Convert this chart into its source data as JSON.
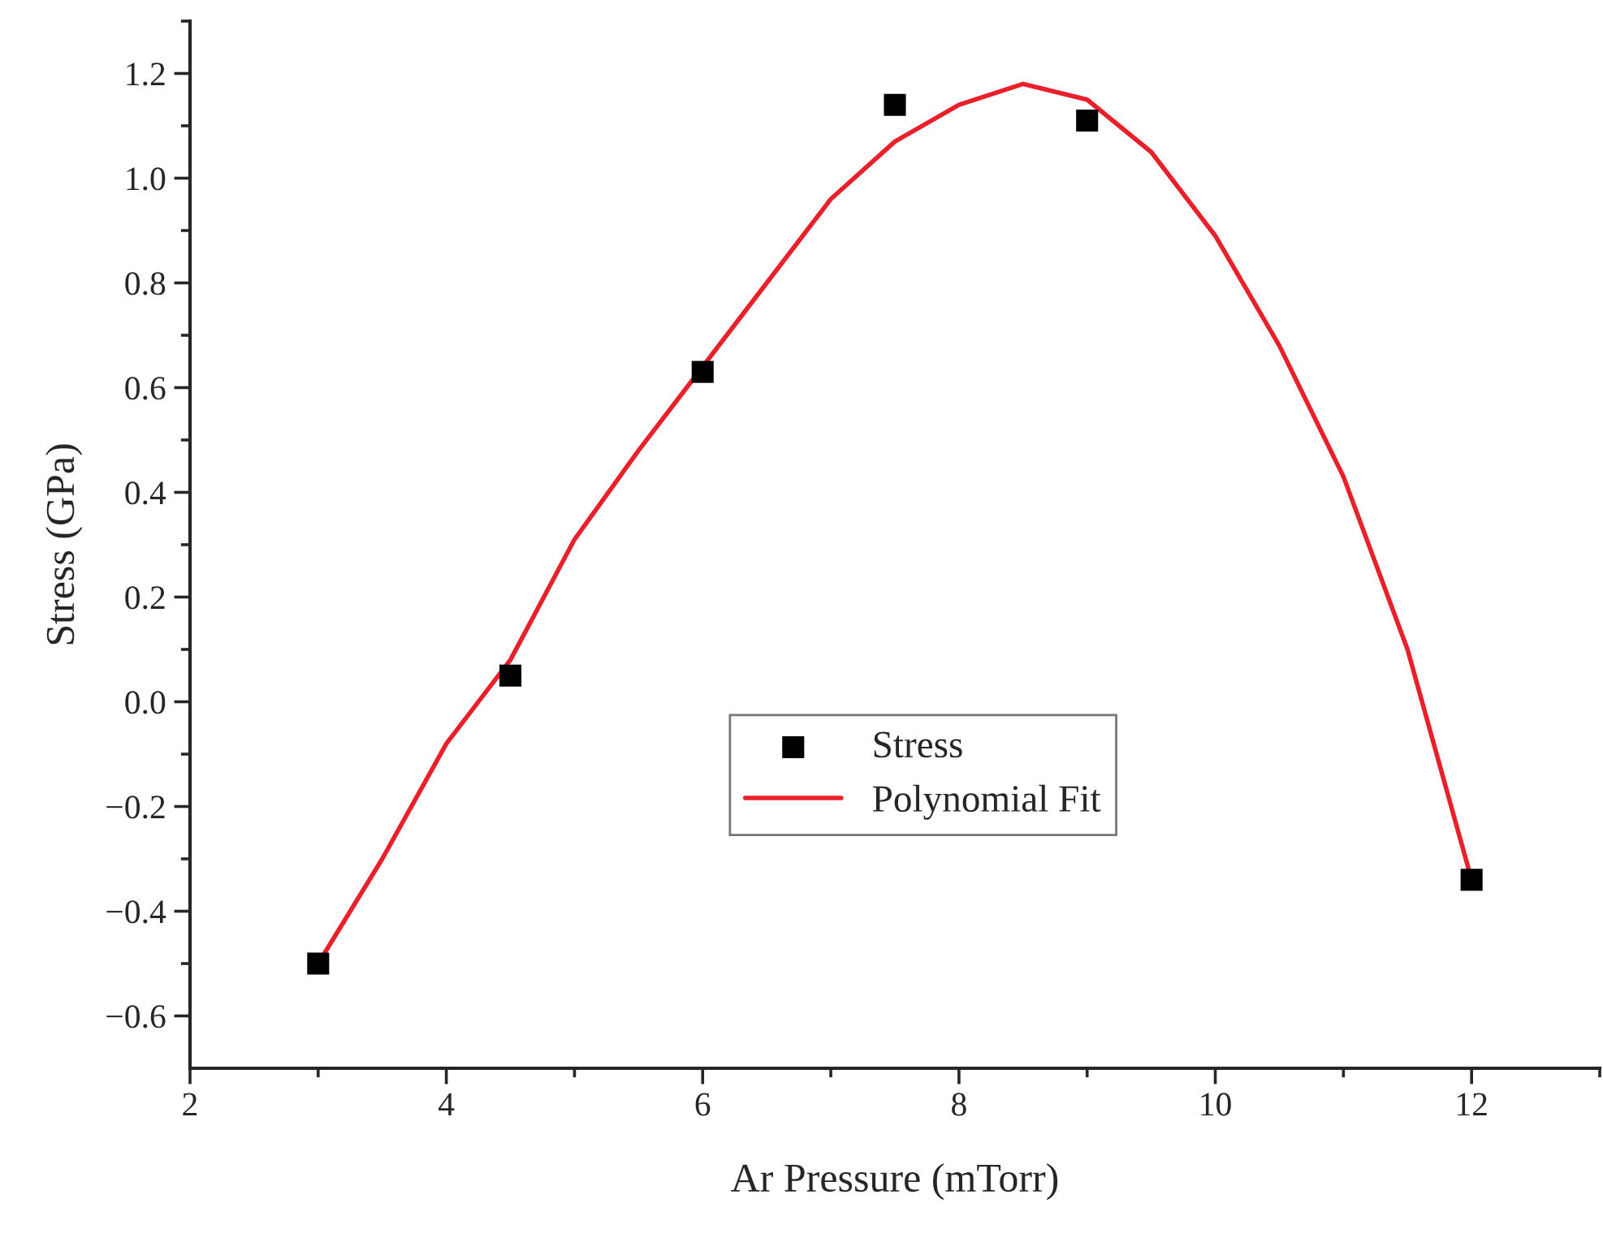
{
  "chart_data": {
    "type": "scatter",
    "xlabel": "Ar Pressure (mTorr)",
    "ylabel": "Stress (GPa)",
    "xlim": [
      2,
      13
    ],
    "ylim": [
      -0.7,
      1.3
    ],
    "xticks": [
      2,
      4,
      6,
      8,
      10,
      12
    ],
    "yticks": [
      {
        "value": -0.6,
        "label": "−0.6"
      },
      {
        "value": -0.4,
        "label": "−0.4"
      },
      {
        "value": -0.2,
        "label": "−0.2"
      },
      {
        "value": 0,
        "label": "0.0"
      },
      {
        "value": 0.2,
        "label": "0.2"
      },
      {
        "value": 0.4,
        "label": "0.4"
      },
      {
        "value": 0.6,
        "label": "0.6"
      },
      {
        "value": 0.8,
        "label": "0.8"
      },
      {
        "value": 1,
        "label": "1.0"
      },
      {
        "value": 1.2,
        "label": "1.2"
      }
    ],
    "grid": false,
    "legend": "center",
    "series": [
      {
        "name": "Stress",
        "marker": "square",
        "color": "#000000",
        "x": [
          3,
          4.5,
          6,
          7.5,
          9,
          12
        ],
        "values": [
          -0.5,
          0.05,
          0.63,
          1.14,
          1.11,
          -0.34
        ]
      },
      {
        "name": "Polynomial Fit",
        "type": "line",
        "marker": "none",
        "line_style": "solid",
        "color": "#e8202a",
        "x": [
          3,
          3.5,
          4,
          4.5,
          5,
          5.5,
          6,
          6.5,
          7,
          7.5,
          8,
          8.5,
          9,
          9.5,
          10,
          10.5,
          11,
          11.5,
          12
        ],
        "values": [
          -0.5,
          -0.3,
          -0.08,
          0.08,
          0.31,
          0.48,
          0.64,
          0.8,
          0.96,
          1.07,
          1.14,
          1.18,
          1.15,
          1.05,
          0.89,
          0.68,
          0.43,
          0.1,
          -0.34
        ]
      }
    ]
  }
}
